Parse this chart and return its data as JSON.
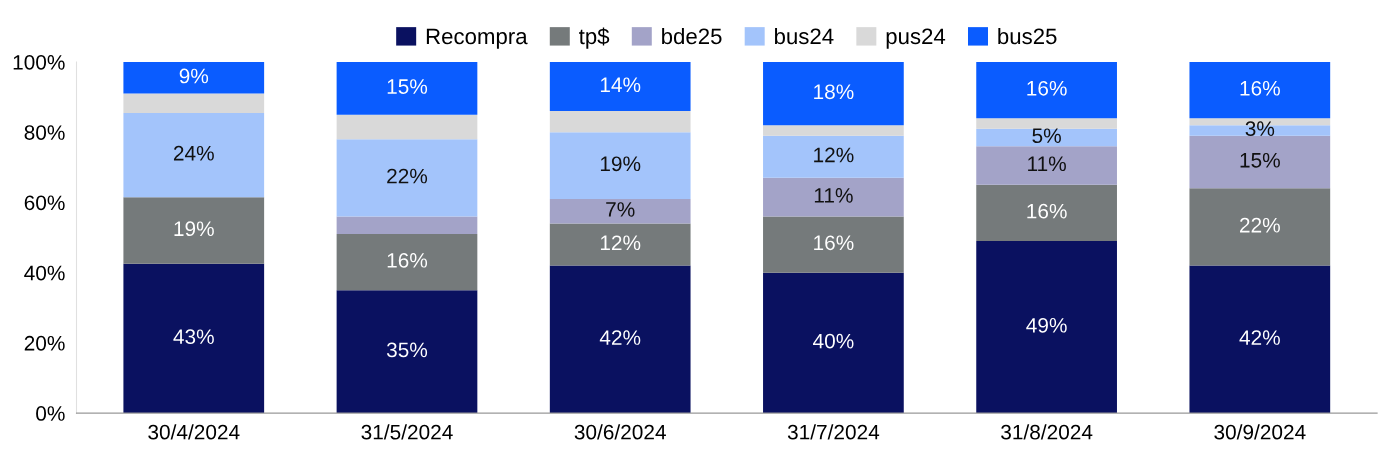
{
  "chart_data": {
    "type": "bar",
    "stacked": true,
    "legend": "top",
    "categories": [
      "30/4/2024",
      "31/5/2024",
      "30/6/2024",
      "31/7/2024",
      "31/8/2024",
      "30/9/2024"
    ],
    "ylim": [
      0,
      100
    ],
    "yticks": [
      {
        "value": 0,
        "label": "0%"
      },
      {
        "value": 20,
        "label": "20%"
      },
      {
        "value": 40,
        "label": "40%"
      },
      {
        "value": 60,
        "label": "60%"
      },
      {
        "value": 80,
        "label": "80%"
      },
      {
        "value": 100,
        "label": "100%"
      }
    ],
    "series": [
      {
        "name": "Recompra",
        "color": "#0a1160",
        "values": [
          42.5,
          35,
          42,
          40,
          49,
          42
        ],
        "value_labels": [
          "43%",
          "35%",
          "42%",
          "40%",
          "49%",
          "42%"
        ]
      },
      {
        "name": "tp$",
        "color": "#757a7b",
        "values": [
          19,
          16,
          12,
          16,
          16,
          22
        ],
        "value_labels": [
          "19%",
          "16%",
          "12%",
          "16%",
          "16%",
          "22%"
        ]
      },
      {
        "name": "bde25",
        "color": "#a3a3c8",
        "values": [
          0,
          5,
          7,
          11,
          11,
          15
        ],
        "value_labels": [
          null,
          null,
          "7%",
          "11%",
          "11%",
          "15%"
        ]
      },
      {
        "name": "bus24",
        "color": "#a3c4fb",
        "values": [
          24,
          22,
          19,
          12,
          5,
          3
        ],
        "value_labels": [
          "24%",
          "22%",
          "19%",
          "12%",
          "5%",
          "3%"
        ]
      },
      {
        "name": "pus24",
        "color": "#d9d9d9",
        "values": [
          5.5,
          7,
          6,
          3,
          3,
          2
        ],
        "value_labels": [
          null,
          null,
          null,
          null,
          null,
          null
        ]
      },
      {
        "name": "bus25",
        "color": "#0a5cff",
        "values": [
          9,
          15,
          14,
          18,
          16,
          16
        ],
        "value_labels": [
          "9%",
          "15%",
          "14%",
          "18%",
          "16%",
          "16%"
        ]
      }
    ]
  }
}
